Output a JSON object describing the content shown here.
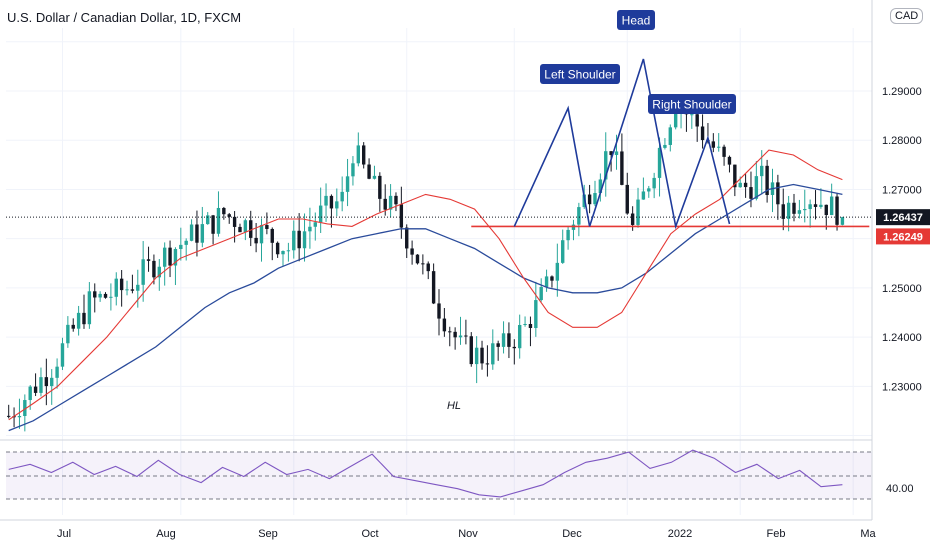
{
  "header": {
    "title": "U.S. Dollar / Canadian Dollar, 1D, FXCM",
    "currency": "CAD"
  },
  "colors": {
    "up": "#26a69a",
    "down": "#131722",
    "ema_fast": "#e53935",
    "ema_slow": "#2a4b9b",
    "pattern": "#1f3b9b",
    "neckline": "#e53935",
    "rsi": "#7e57c2"
  },
  "chart_data": {
    "type": "candlestick",
    "x_labels": [
      "Jul",
      "Aug",
      "Sep",
      "Oct",
      "Nov",
      "Dec",
      "2022",
      "Feb",
      "Ma"
    ],
    "y_ticks": [
      "1.29000",
      "1.28000",
      "1.27000",
      "1.25000",
      "1.24000",
      "1.23000"
    ],
    "ylim": [
      1.2195,
      1.3028
    ],
    "last_price": "1.26437",
    "neckline_price": "1.26249",
    "annotations": [
      "Head",
      "Left Shoulder",
      "Right Shoulder",
      "HL"
    ],
    "rsi_level_label": "40.00",
    "pattern_points": [
      [
        94,
        1.2625
      ],
      [
        104,
        1.2865
      ],
      [
        108,
        1.2625
      ],
      [
        118,
        1.2965
      ],
      [
        124,
        1.2625
      ],
      [
        130,
        1.2805
      ],
      [
        134,
        1.263
      ]
    ],
    "neckline": {
      "from_index": 86,
      "to_index": 160,
      "price": 1.26249
    },
    "ema_fast": [
      1.2232,
      1.2265,
      1.23,
      1.235,
      1.24,
      1.246,
      1.252,
      1.256,
      1.258,
      1.26,
      1.262,
      1.264,
      1.264,
      1.263,
      1.2625,
      1.265,
      1.267,
      1.269,
      1.268,
      1.266,
      1.26,
      1.252,
      1.245,
      1.242,
      1.242,
      1.245,
      1.253,
      1.261,
      1.265,
      1.268,
      1.273,
      1.278,
      1.277,
      1.274,
      1.272
    ],
    "ema_slow": [
      1.221,
      1.223,
      1.226,
      1.229,
      1.232,
      1.235,
      1.238,
      1.242,
      1.246,
      1.249,
      1.251,
      1.254,
      1.256,
      1.258,
      1.26,
      1.261,
      1.262,
      1.262,
      1.26,
      1.258,
      1.255,
      1.252,
      1.25,
      1.249,
      1.249,
      1.25,
      1.253,
      1.257,
      1.261,
      1.264,
      1.267,
      1.27,
      1.271,
      1.27,
      1.269
    ],
    "rsi": [
      55,
      60,
      52,
      62,
      50,
      58,
      48,
      64,
      50,
      42,
      57,
      48,
      62,
      50,
      55,
      46,
      58,
      70,
      48,
      44,
      40,
      36,
      30,
      28,
      34,
      40,
      52,
      62,
      66,
      72,
      56,
      62,
      74,
      66,
      52,
      60,
      46,
      54,
      38,
      40
    ]
  }
}
